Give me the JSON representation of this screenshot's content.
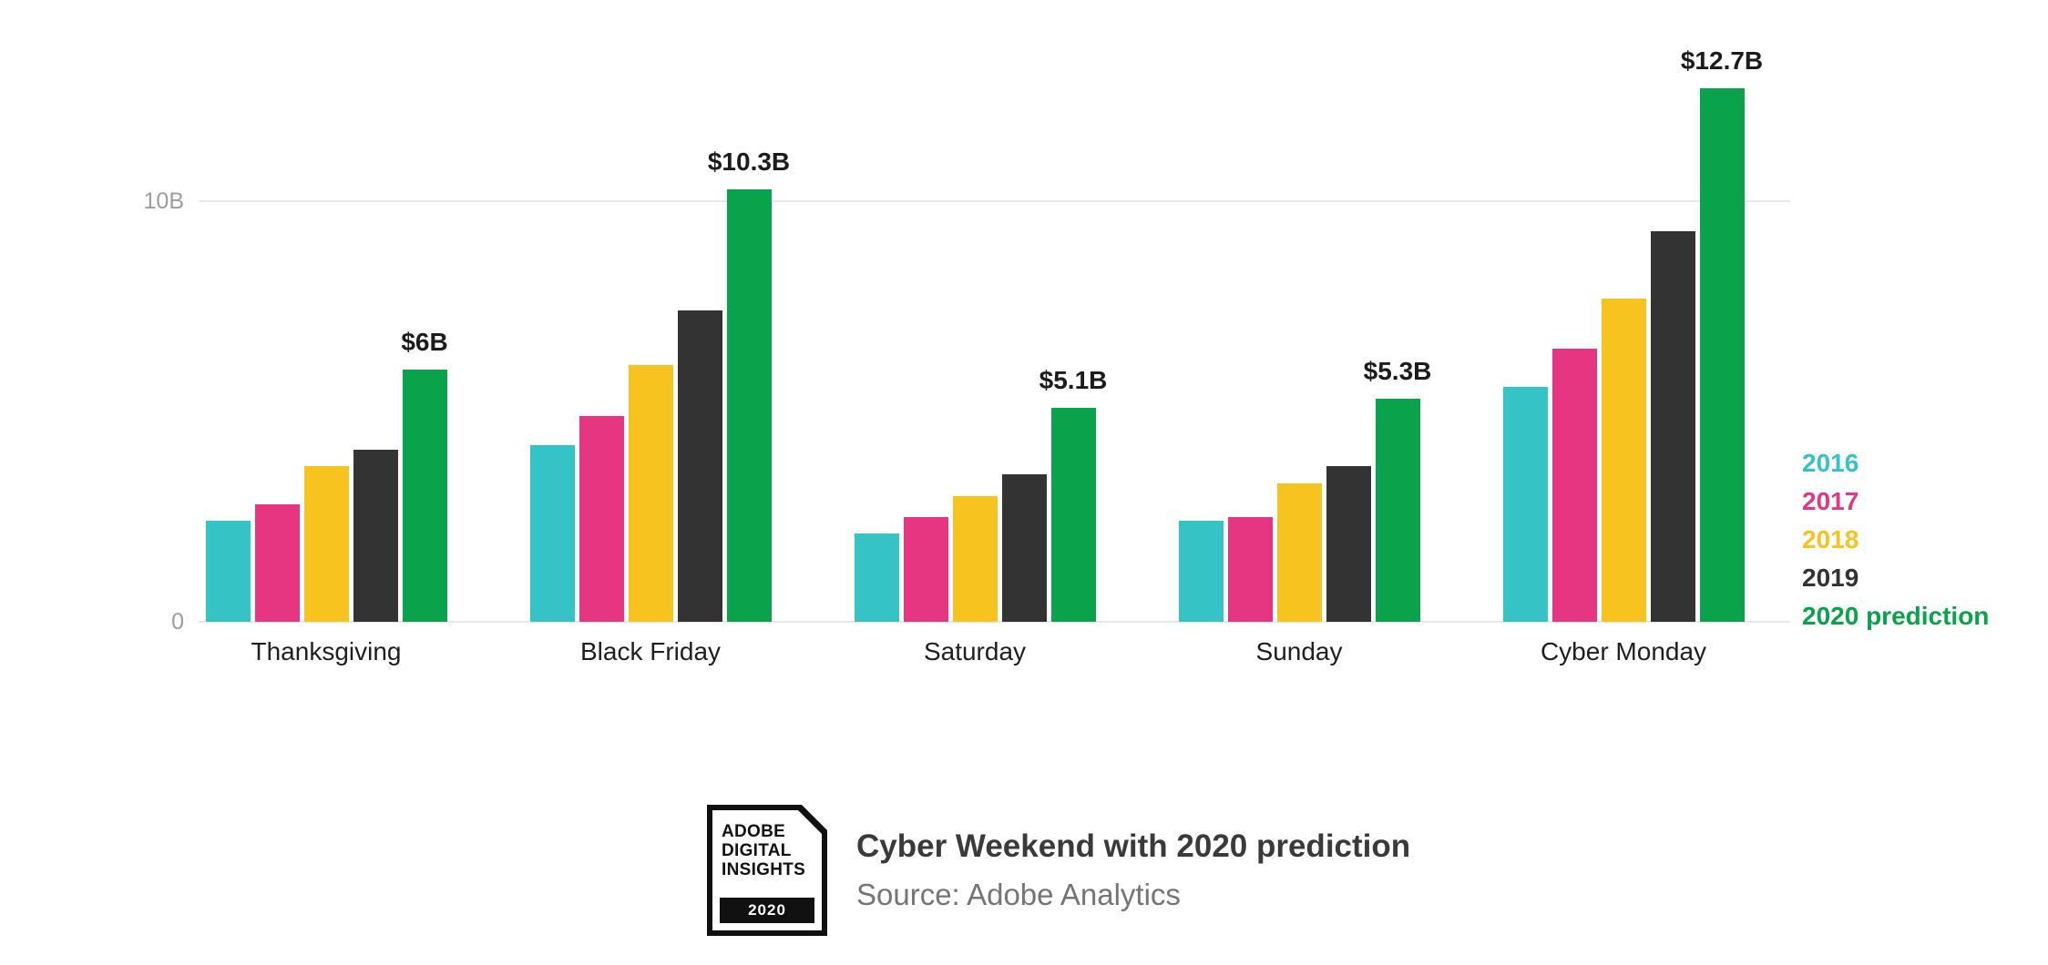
{
  "chart_data": {
    "type": "bar",
    "title": "Cyber Weekend with 2020 prediction",
    "source": "Source: Adobe Analytics",
    "categories": [
      "Thanksgiving",
      "Black Friday",
      "Saturday",
      "Sunday",
      "Cyber Monday"
    ],
    "series": [
      {
        "name": "2016",
        "color": "#36C3C6",
        "values": [
          2.4,
          4.2,
          2.1,
          2.4,
          5.6
        ]
      },
      {
        "name": "2017",
        "color": "#E63581",
        "values": [
          2.8,
          4.9,
          2.5,
          2.5,
          6.5
        ]
      },
      {
        "name": "2018",
        "color": "#F7C31F",
        "values": [
          3.7,
          6.1,
          3.0,
          3.3,
          7.7
        ]
      },
      {
        "name": "2019",
        "color": "#333333",
        "values": [
          4.1,
          7.4,
          3.5,
          3.7,
          9.3
        ]
      },
      {
        "name": "2020 prediction",
        "color": "#0AA24A",
        "values": [
          6.0,
          10.3,
          5.1,
          5.3,
          12.7
        ],
        "data_labels": [
          "$6B",
          "$10.3B",
          "$5.1B",
          "$5.3B",
          "$12.7B"
        ]
      }
    ],
    "yticks": [
      {
        "label": "0",
        "value": 0
      },
      {
        "label": "10B",
        "value": 10
      }
    ],
    "ylim": [
      0,
      13
    ],
    "grid": "horizontal lines at yticks",
    "legend_position": "right"
  },
  "logo": {
    "line1": "ADOBE",
    "line2": "DIGITAL",
    "line3": "INSIGHTS",
    "year": "2020"
  }
}
